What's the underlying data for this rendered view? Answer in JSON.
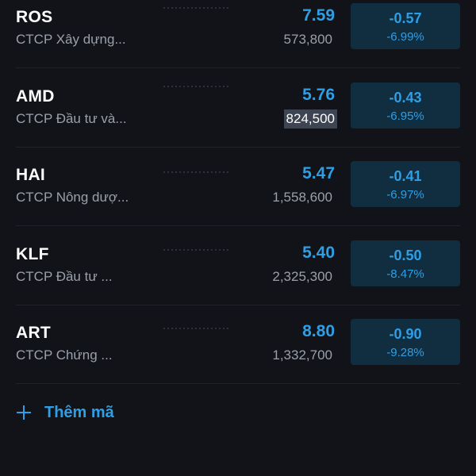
{
  "colors": {
    "background": "#111318",
    "accent": "#2e9fe6",
    "change_box": "#112d40",
    "muted_text": "#9aa0aa"
  },
  "watchlist": [
    {
      "symbol": "ROS",
      "company": "CTCP Xây dựng...",
      "price": "7.59",
      "volume": "573,800",
      "change": "-0.57",
      "change_pct": "-6.99%",
      "volume_highlighted": false
    },
    {
      "symbol": "AMD",
      "company": "CTCP Đầu tư và...",
      "price": "5.76",
      "volume": "824,500",
      "change": "-0.43",
      "change_pct": "-6.95%",
      "volume_highlighted": true
    },
    {
      "symbol": "HAI",
      "company": "CTCP Nông dượ...",
      "price": "5.47",
      "volume": "1,558,600",
      "change": "-0.41",
      "change_pct": "-6.97%",
      "volume_highlighted": false
    },
    {
      "symbol": "KLF",
      "company": "CTCP Đầu tư ...",
      "price": "5.40",
      "volume": "2,325,300",
      "change": "-0.50",
      "change_pct": "-8.47%",
      "volume_highlighted": false
    },
    {
      "symbol": "ART",
      "company": "CTCP Chứng ...",
      "price": "8.80",
      "volume": "1,332,700",
      "change": "-0.90",
      "change_pct": "-9.28%",
      "volume_highlighted": false
    }
  ],
  "add_button": {
    "icon": "plus-icon",
    "label": "Thêm mã"
  }
}
